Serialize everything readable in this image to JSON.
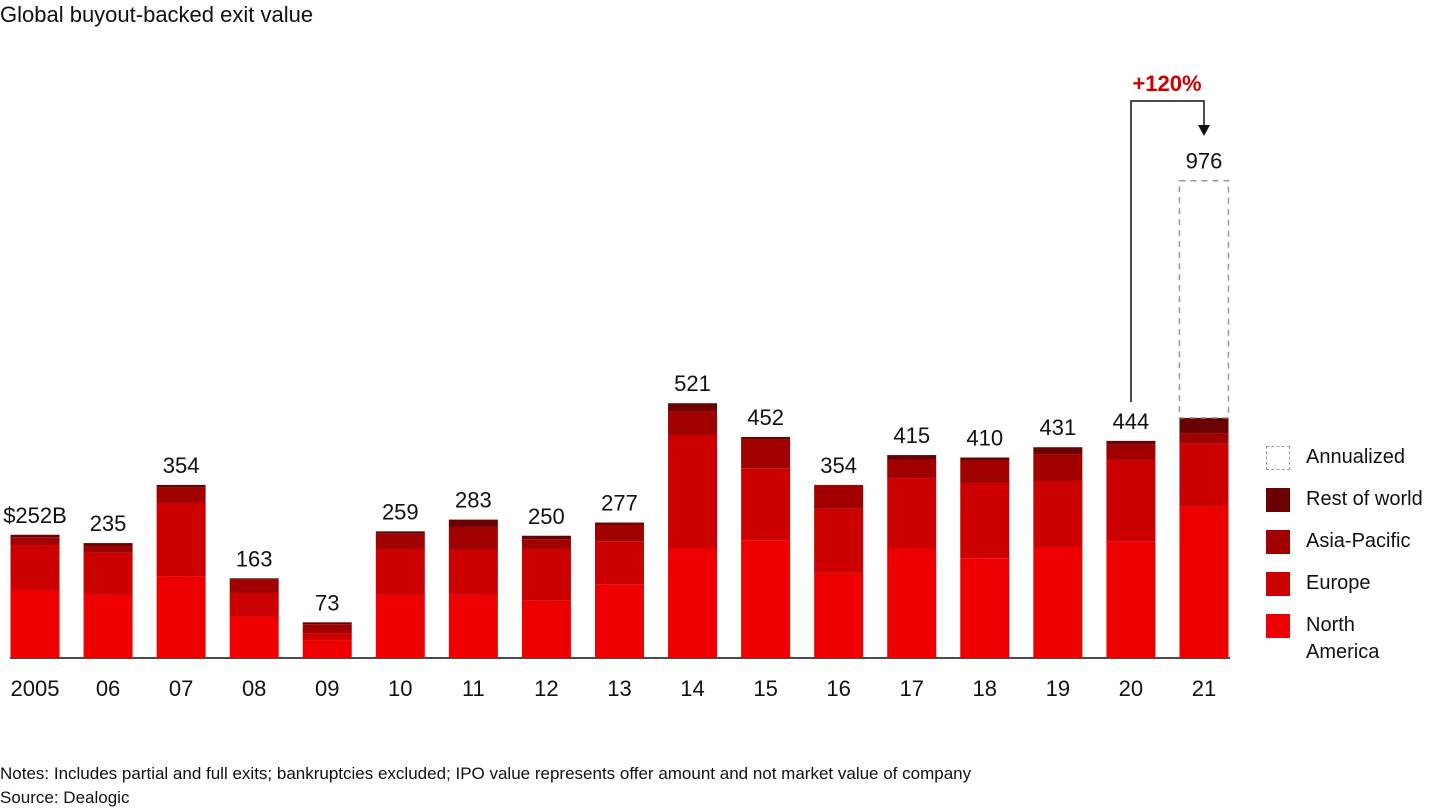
{
  "chart_data": {
    "type": "stacked-bar",
    "title": "Global buyout-backed exit value",
    "categories": [
      "2005",
      "06",
      "07",
      "08",
      "09",
      "10",
      "11",
      "12",
      "13",
      "14",
      "15",
      "16",
      "17",
      "18",
      "19",
      "20",
      "21"
    ],
    "series": [
      {
        "name": "North America",
        "color": "#ee0000",
        "values": [
          139,
          129,
          166,
          84,
          35,
          129,
          129,
          117,
          151,
          223,
          241,
          174,
          225,
          204,
          227,
          239,
          309
        ]
      },
      {
        "name": "Europe",
        "color": "#cc0000",
        "values": [
          92,
          86,
          151,
          49,
          16,
          94,
          92,
          106,
          88,
          233,
          147,
          131,
          143,
          153,
          135,
          166,
          129
        ]
      },
      {
        "name": "Asia-Pacific",
        "color": "#a00000",
        "values": [
          16,
          14,
          31,
          27,
          18,
          31,
          47,
          20,
          33,
          49,
          59,
          47,
          37,
          47,
          55,
          31,
          22
        ]
      },
      {
        "name": "Rest of world",
        "color": "#6b0000",
        "values": [
          5,
          6,
          6,
          3,
          4,
          5,
          15,
          7,
          5,
          16,
          5,
          2,
          10,
          6,
          14,
          8,
          31
        ]
      },
      {
        "name": "Annualized",
        "color": "#999999",
        "dashed": true,
        "values": [
          null,
          null,
          null,
          null,
          null,
          null,
          null,
          null,
          null,
          null,
          null,
          null,
          null,
          null,
          null,
          null,
          485
        ]
      }
    ],
    "totals": {
      "values": [
        252,
        235,
        354,
        163,
        73,
        259,
        283,
        250,
        277,
        521,
        452,
        354,
        415,
        410,
        431,
        444,
        976
      ],
      "value_labels": [
        "$252B",
        "235",
        "354",
        "163",
        "73",
        "259",
        "283",
        "250",
        "277",
        "521",
        "452",
        "354",
        "415",
        "410",
        "431",
        "444",
        "976"
      ]
    },
    "annotation": "+120%",
    "notes": [
      "Notes: Includes partial and full exits; bankruptcies excluded; IPO value represents offer amount and not market value of company",
      "Source: Dealogic"
    ]
  }
}
